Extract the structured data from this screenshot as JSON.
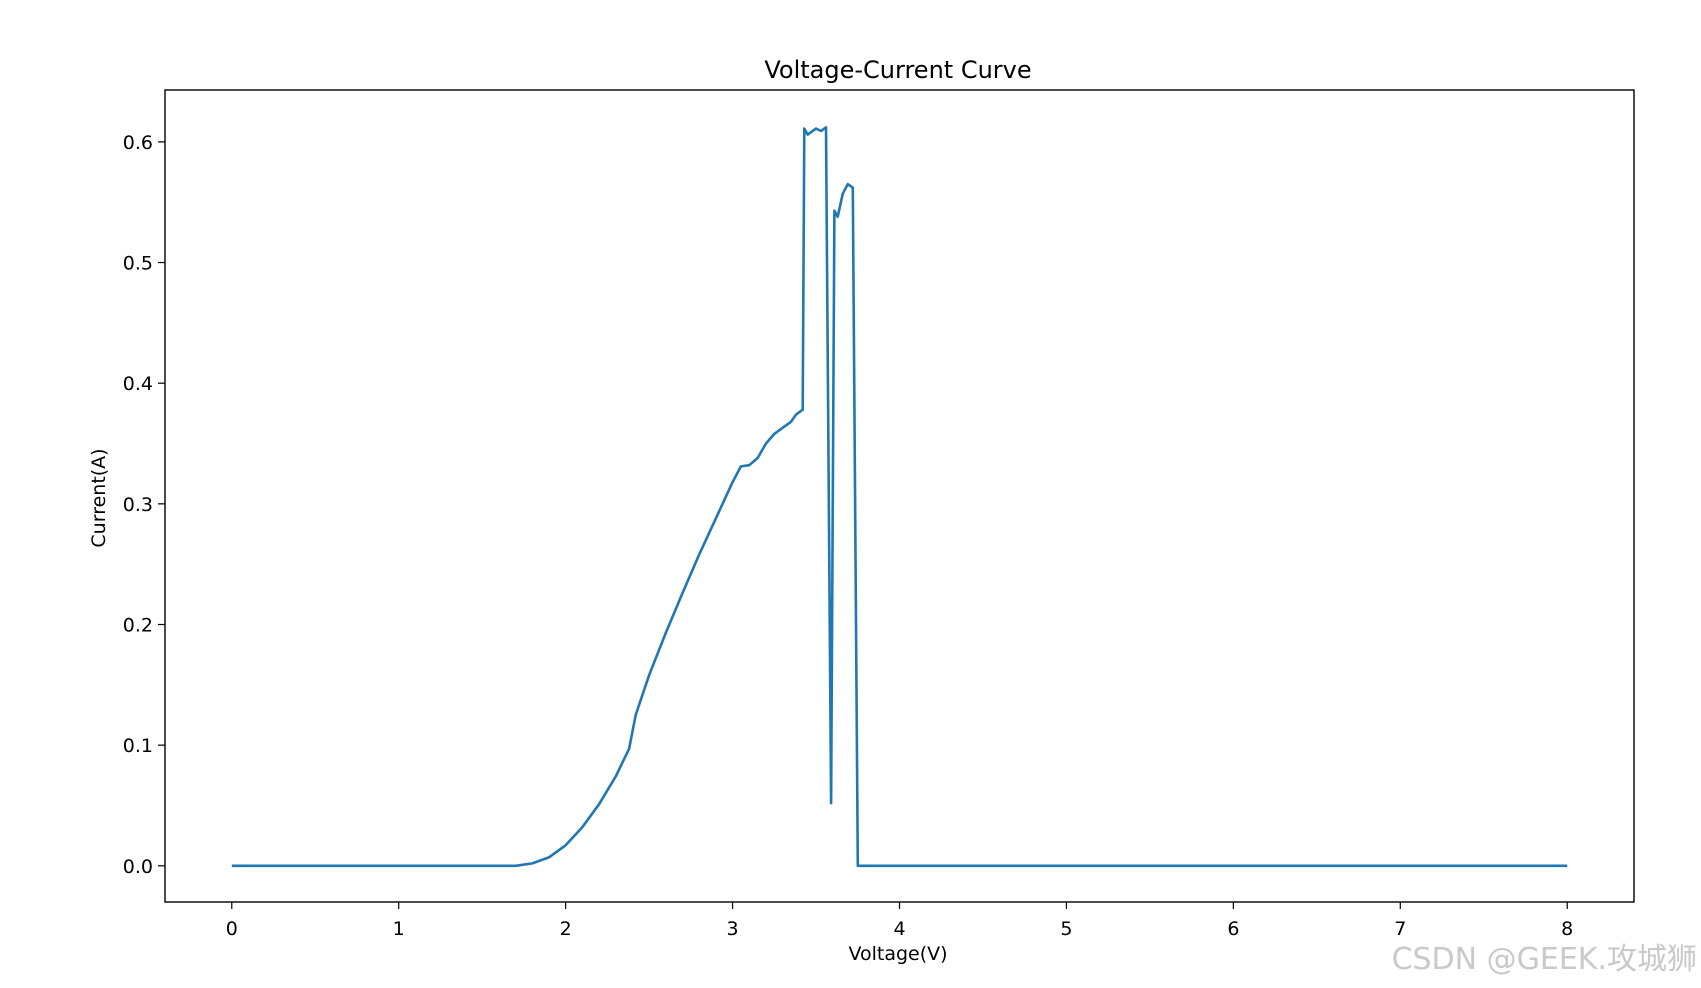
{
  "chart_data": {
    "type": "line",
    "title": "Voltage-Current Curve",
    "xlabel": "Voltage(V)",
    "ylabel": "Current(A)",
    "xlim": [
      -0.4,
      8.4
    ],
    "ylim": [
      -0.03,
      0.643
    ],
    "xticks": [
      0,
      1,
      2,
      3,
      4,
      5,
      6,
      7,
      8
    ],
    "xtick_labels": [
      "0",
      "1",
      "2",
      "3",
      "4",
      "5",
      "6",
      "7",
      "8"
    ],
    "yticks": [
      0.0,
      0.1,
      0.2,
      0.3,
      0.4,
      0.5,
      0.6
    ],
    "ytick_labels": [
      "0.0",
      "0.1",
      "0.2",
      "0.3",
      "0.4",
      "0.5",
      "0.6"
    ],
    "grid": false,
    "series": [
      {
        "color": "#1f77b4",
        "points": [
          [
            0.0,
            0.0
          ],
          [
            1.7,
            0.0
          ],
          [
            1.8,
            0.002
          ],
          [
            1.9,
            0.007
          ],
          [
            2.0,
            0.017
          ],
          [
            2.1,
            0.032
          ],
          [
            2.2,
            0.051
          ],
          [
            2.3,
            0.074
          ],
          [
            2.38,
            0.097
          ],
          [
            2.42,
            0.125
          ],
          [
            2.5,
            0.158
          ],
          [
            2.6,
            0.193
          ],
          [
            2.7,
            0.226
          ],
          [
            2.8,
            0.258
          ],
          [
            2.9,
            0.288
          ],
          [
            3.0,
            0.318
          ],
          [
            3.05,
            0.331
          ],
          [
            3.1,
            0.332
          ],
          [
            3.15,
            0.338
          ],
          [
            3.2,
            0.35
          ],
          [
            3.25,
            0.358
          ],
          [
            3.3,
            0.363
          ],
          [
            3.35,
            0.368
          ],
          [
            3.38,
            0.374
          ],
          [
            3.42,
            0.378
          ],
          [
            3.43,
            0.611
          ],
          [
            3.45,
            0.606
          ],
          [
            3.5,
            0.611
          ],
          [
            3.53,
            0.609
          ],
          [
            3.56,
            0.612
          ],
          [
            3.59,
            0.052
          ],
          [
            3.61,
            0.543
          ],
          [
            3.63,
            0.538
          ],
          [
            3.66,
            0.557
          ],
          [
            3.69,
            0.565
          ],
          [
            3.72,
            0.562
          ],
          [
            3.75,
            0.0
          ],
          [
            8.0,
            0.0
          ]
        ]
      }
    ]
  },
  "watermark": "CSDN @GEEK.攻城狮",
  "colors": {
    "line": "#1f77b4",
    "axes": "#000000",
    "watermark": "#c9c9c9"
  }
}
